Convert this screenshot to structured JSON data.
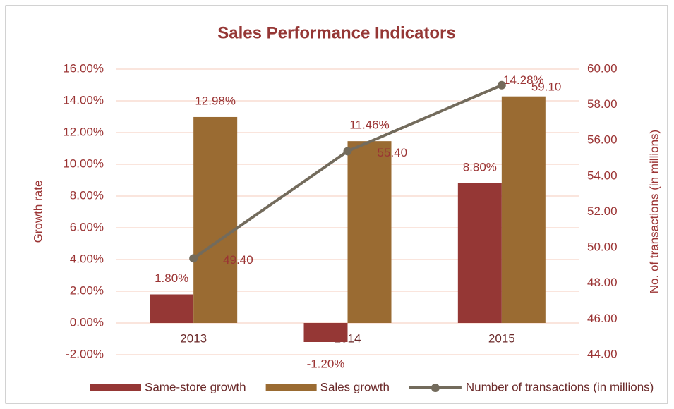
{
  "chart_data": {
    "type": "bar",
    "title": "Sales Performance Indicators",
    "categories": [
      "2013",
      "2014",
      "2015"
    ],
    "series": [
      {
        "name": "Same-store growth",
        "color": "#953735",
        "values": [
          1.8,
          -1.2,
          8.8
        ],
        "value_labels": [
          "1.80%",
          "-1.20%",
          "8.80%"
        ]
      },
      {
        "name": "Sales growth",
        "color": "#9a6b32",
        "values": [
          12.98,
          11.46,
          14.28
        ],
        "value_labels": [
          "12.98%",
          "11.46%",
          "14.28%"
        ]
      },
      {
        "name": "Number of transactions (in millions)",
        "type": "line",
        "axis": "y2",
        "color": "#736b5c",
        "values": [
          49.4,
          55.4,
          59.1
        ],
        "value_labels": [
          "49.40",
          "55.40",
          "59.10"
        ]
      }
    ],
    "ylabel": "Growth rate",
    "y2label": "No. of transactions (in millions)",
    "ylim": [
      -2,
      16
    ],
    "yticks": [
      {
        "value": -2,
        "label": "-2.00%"
      },
      {
        "value": 0,
        "label": "0.00%"
      },
      {
        "value": 2,
        "label": "2.00%"
      },
      {
        "value": 4,
        "label": "4.00%"
      },
      {
        "value": 6,
        "label": "6.00%"
      },
      {
        "value": 8,
        "label": "8.00%"
      },
      {
        "value": 10,
        "label": "10.00%"
      },
      {
        "value": 12,
        "label": "12.00%"
      },
      {
        "value": 14,
        "label": "14.00%"
      },
      {
        "value": 16,
        "label": "16.00%"
      }
    ],
    "y2lim": [
      44,
      60
    ],
    "y2ticks": [
      {
        "value": 44,
        "label": "44.00"
      },
      {
        "value": 46,
        "label": "46.00"
      },
      {
        "value": 48,
        "label": "48.00"
      },
      {
        "value": 50,
        "label": "50.00"
      },
      {
        "value": 52,
        "label": "52.00"
      },
      {
        "value": 54,
        "label": "54.00"
      },
      {
        "value": 56,
        "label": "56.00"
      },
      {
        "value": 58,
        "label": "58.00"
      },
      {
        "value": 60,
        "label": "60.00"
      }
    ],
    "grid": true,
    "legend": "bottom"
  }
}
